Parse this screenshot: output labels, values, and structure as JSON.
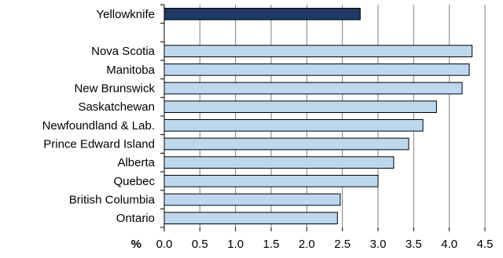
{
  "chart_data": {
    "type": "bar",
    "orientation": "horizontal",
    "categories": [
      "Yellowknife",
      "",
      "Nova Scotia",
      "Manitoba",
      "New Brunswick",
      "Saskatchewan",
      "Newfoundland & Lab.",
      "Prince Edward Island",
      "Alberta",
      "Quebec",
      "British Columbia",
      "Ontario"
    ],
    "values": [
      2.75,
      null,
      4.32,
      4.28,
      4.18,
      3.82,
      3.63,
      3.43,
      3.22,
      3.0,
      2.47,
      2.43
    ],
    "highlight": [
      "Yellowknife"
    ],
    "colors": {
      "highlight_fill": "#1f3864",
      "bar_fill": "#bdd7ee",
      "bar_stroke": "#000000",
      "grid": "#7f7f7f"
    },
    "xlabel": "%",
    "xlim": [
      0.0,
      4.5
    ],
    "xticks": [
      "0.0",
      "0.5",
      "1.0",
      "1.5",
      "2.0",
      "2.5",
      "3.0",
      "3.5",
      "4.0",
      "4.5"
    ],
    "grid": "vertical",
    "title": ""
  }
}
